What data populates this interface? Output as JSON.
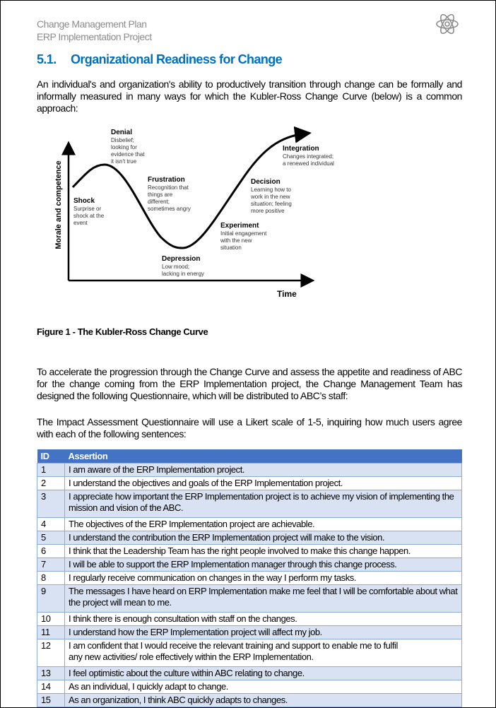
{
  "header": {
    "line1": "Change Management Plan",
    "line2": "ERP Implementation Project",
    "logo_icon": "atom-icon"
  },
  "section": {
    "number": "5.1.",
    "title": "Organizational Readiness for Change"
  },
  "paragraphs": [
    "An individual's and organization's ability to productively transition through change can be formally and informally measured in many ways for which the Kubler-Ross Change Curve (below) is a common approach:",
    "To accelerate the progression through the Change Curve and assess the appetite and readiness of ABC for the change coming from the ERP Implementation project, the Change Management Team has designed the following Questionnaire, which will be distributed to ABC’s staff:",
    "The Impact Assessment Questionnaire will use a Likert scale of 1-5, inquiring how much users agree with each of the following sentences:"
  ],
  "figure": {
    "ylabel": "Morale and competence",
    "xlabel": "Time",
    "stages": [
      {
        "name": "Shock",
        "desc": [
          "Surprise or",
          "shock at the",
          "event"
        ]
      },
      {
        "name": "Denial",
        "desc": [
          "Disbelief;",
          "looking for",
          "evidence that",
          "it isn't true"
        ]
      },
      {
        "name": "Frustration",
        "desc": [
          "Recognition that",
          "things are",
          "different;",
          "sometimes angry"
        ]
      },
      {
        "name": "Depression",
        "desc": [
          "Low mood;",
          "lacking in energy"
        ]
      },
      {
        "name": "Experiment",
        "desc": [
          "Initial engagement",
          "with the new",
          "situation"
        ]
      },
      {
        "name": "Decision",
        "desc": [
          "Learning how to",
          "work in the new",
          "situation; feeling",
          "more positive"
        ]
      },
      {
        "name": "Integration",
        "desc": [
          "Changes integrated;",
          "a renewed individual"
        ]
      }
    ],
    "caption": "Figure 1 - The Kubler-Ross Change Curve"
  },
  "table": {
    "headers": [
      "ID",
      "Assertion"
    ],
    "header_color": "#4472c4",
    "band_color": "#d9e2f3",
    "rows": [
      [
        "1",
        "I am aware of the ERP Implementation project."
      ],
      [
        "2",
        "I understand the objectives and goals of the ERP Implementation project."
      ],
      [
        "3",
        "I appreciate how important the ERP Implementation project is to achieve my vision of implementing the mission and vision of the ABC."
      ],
      [
        "4",
        "The objectives of the ERP Implementation project are achievable."
      ],
      [
        "5",
        "I understand the contribution the ERP Implementation project will make to the vision."
      ],
      [
        "6",
        "I think that the Leadership Team has the right people involved to make this change happen."
      ],
      [
        "7",
        "I will be able to support the ERP Implementation manager through this change process."
      ],
      [
        "8",
        "I regularly receive communication on changes in the way I perform my tasks."
      ],
      [
        "9",
        "The messages I have heard on ERP Implementation make me feel that I will be comfortable about what the project will mean to me."
      ],
      [
        "10",
        "I think there is enough consultation with staff on the changes."
      ],
      [
        "11",
        "I understand how the ERP Implementation project will affect my job."
      ],
      [
        "12",
        "I am confident that I would receive the relevant training and support to enable me to fulfil\nany new activities/ role effectively within the ERP Implementation."
      ],
      [
        "13",
        "I feel optimistic about the culture within ABC relating to change."
      ],
      [
        "14",
        "As an individual, I quickly adapt to change."
      ],
      [
        "15",
        "As an organization, I think ABC quickly adapts to changes."
      ]
    ]
  }
}
